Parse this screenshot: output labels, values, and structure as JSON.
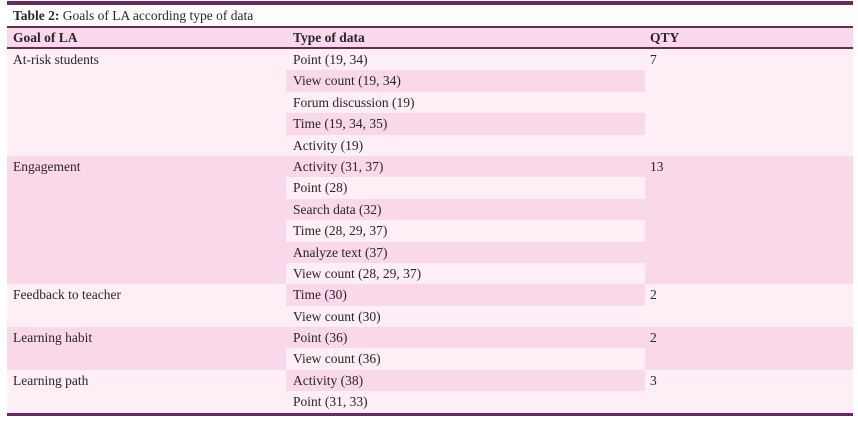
{
  "table": {
    "title": {
      "label": "Table 2:",
      "text": " Goals of LA according type of data"
    },
    "columns": [
      "Goal of LA",
      "Type of data",
      "QTY"
    ],
    "groups": [
      {
        "goal": "At-risk students",
        "qty": "7",
        "types": [
          "Point (19, 34)",
          "View count (19, 34)",
          "Forum discussion (19)",
          "Time (19, 34, 35)",
          "Activity (19)"
        ]
      },
      {
        "goal": "Engagement",
        "qty": "13",
        "types": [
          "Activity (31, 37)",
          "Point (28)",
          "Search data (32)",
          "Time (28, 29, 37)",
          "Analyze text (37)",
          "View count (28, 29, 37)"
        ]
      },
      {
        "goal": "Feedback to teacher",
        "qty": "2",
        "types": [
          "Time (30)",
          "View count (30)"
        ]
      },
      {
        "goal": "Learning habit",
        "qty": "2",
        "types": [
          "Point (36)",
          "View count (36)"
        ]
      },
      {
        "goal": "Learning path",
        "qty": "3",
        "types": [
          "Activity (38)",
          "Point (31, 33)"
        ]
      }
    ]
  },
  "colors": {
    "border_plum": "#68295f",
    "row_pink": "#f9d9e9",
    "row_light": "#fdeff5",
    "text": "#2b2428"
  }
}
